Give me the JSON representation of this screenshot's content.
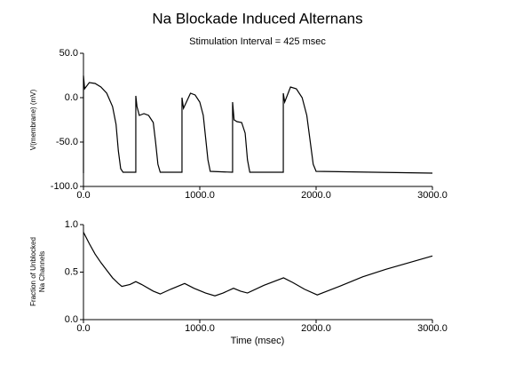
{
  "chart_data": [
    {
      "type": "line",
      "title": "Na Blockade Induced Alternans",
      "subtitle": "Stimulation Interval = 425 msec",
      "ylabel": "V(membrane) (mV)",
      "x": [
        0,
        0,
        10,
        50,
        100,
        150,
        200,
        250,
        280,
        300,
        320,
        340,
        445,
        450,
        450,
        460,
        480,
        520,
        560,
        600,
        620,
        640,
        660,
        847,
        847,
        847,
        860,
        920,
        960,
        1000,
        1030,
        1050,
        1070,
        1090,
        1282,
        1282,
        1282,
        1295,
        1320,
        1360,
        1390,
        1410,
        1430,
        1718,
        1718,
        1718,
        1730,
        1780,
        1830,
        1880,
        1920,
        1950,
        1975,
        2000,
        2500,
        3000
      ],
      "series": [
        {
          "name": "V",
          "color": "#000000",
          "values": [
            -85,
            25,
            10,
            17,
            16,
            12,
            5,
            -10,
            -30,
            -60,
            -80,
            -84,
            -84,
            -84,
            2,
            -10,
            -20,
            -18,
            -20,
            -28,
            -50,
            -75,
            -84,
            -84,
            -84,
            0,
            -12,
            5,
            3,
            -5,
            -20,
            -45,
            -70,
            -83,
            -84,
            -84,
            -5,
            -25,
            -27,
            -28,
            -40,
            -70,
            -84,
            -84,
            -84,
            5,
            -5,
            12,
            10,
            0,
            -20,
            -50,
            -75,
            -83,
            -84,
            -85
          ]
        }
      ],
      "xlim": [
        0,
        3000
      ],
      "xticks": [
        {
          "value": 0,
          "label": "0.0"
        },
        {
          "value": 1000,
          "label": "1000.0"
        },
        {
          "value": 2000,
          "label": "2000.0"
        },
        {
          "value": 3000,
          "label": "3000.0"
        }
      ],
      "ylim": [
        -100,
        50
      ],
      "yticks": [
        {
          "value": -100,
          "label": "-100.0"
        },
        {
          "value": -50,
          "label": "-50.0"
        },
        {
          "value": 0,
          "label": "0.0"
        },
        {
          "value": 50,
          "label": "50.0"
        }
      ]
    },
    {
      "type": "line",
      "xlabel": "Time (msec)",
      "ylabel": [
        "Fraction of Unblocked",
        "Na Channels"
      ],
      "x": [
        0,
        50,
        100,
        150,
        200,
        250,
        300,
        330,
        400,
        450,
        500,
        600,
        660,
        750,
        870,
        950,
        1050,
        1130,
        1200,
        1290,
        1350,
        1410,
        1550,
        1720,
        1800,
        1900,
        2010,
        2200,
        2400,
        2600,
        2800,
        3000
      ],
      "series": [
        {
          "name": "Fraction",
          "color": "#000000",
          "values": [
            0.92,
            0.8,
            0.69,
            0.6,
            0.52,
            0.44,
            0.38,
            0.35,
            0.37,
            0.4,
            0.37,
            0.3,
            0.27,
            0.32,
            0.38,
            0.33,
            0.28,
            0.25,
            0.28,
            0.33,
            0.3,
            0.28,
            0.36,
            0.44,
            0.39,
            0.32,
            0.26,
            0.35,
            0.45,
            0.53,
            0.6,
            0.67
          ]
        }
      ],
      "xlim": [
        0,
        3000
      ],
      "xticks": [
        {
          "value": 0,
          "label": "0.0"
        },
        {
          "value": 1000,
          "label": "1000.0"
        },
        {
          "value": 2000,
          "label": "2000.0"
        },
        {
          "value": 3000,
          "label": "3000.0"
        }
      ],
      "ylim": [
        0,
        1
      ],
      "yticks": [
        {
          "value": 0,
          "label": "0.0"
        },
        {
          "value": 0.5,
          "label": "0.5"
        },
        {
          "value": 1,
          "label": "1.0"
        }
      ]
    }
  ]
}
